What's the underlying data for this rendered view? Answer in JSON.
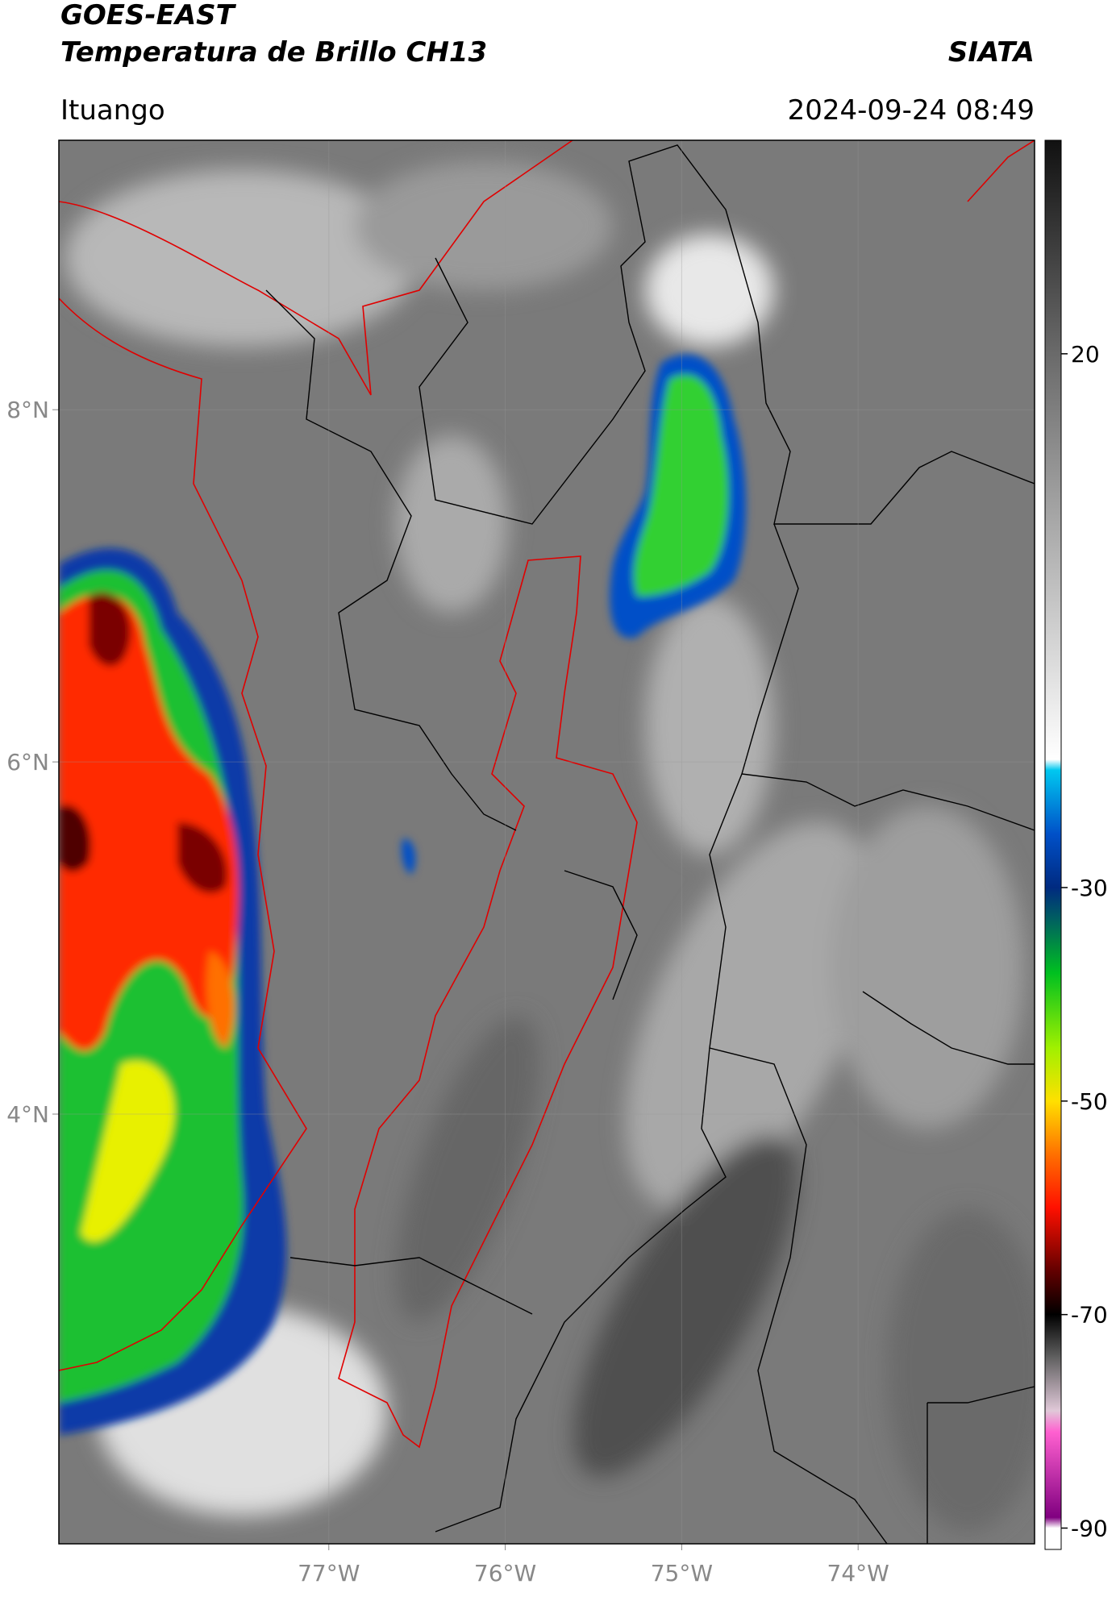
{
  "header": {
    "title": "GOES-EAST",
    "subtitle": "Temperatura de Brillo CH13",
    "source": "SIATA",
    "location": "Ituango",
    "datetime": "2024-09-24 08:49"
  },
  "map": {
    "xlim": [
      -78.53,
      -73.0
    ],
    "ylim": [
      1.56,
      9.53
    ],
    "xticks": [
      {
        "value": -77,
        "label": "77°W"
      },
      {
        "value": -76,
        "label": "76°W"
      },
      {
        "value": -75,
        "label": "75°W"
      },
      {
        "value": -74,
        "label": "74°W"
      }
    ],
    "yticks": [
      {
        "value": 8,
        "label": "8°N"
      },
      {
        "value": 6,
        "label": "6°N"
      },
      {
        "value": 4,
        "label": "4°N"
      }
    ]
  },
  "colorbar": {
    "clim": [
      -92,
      40
    ],
    "ticks": [
      20,
      -30,
      -50,
      -70,
      -90
    ],
    "colormap": [
      {
        "value": 40,
        "color": "#111111"
      },
      {
        "value": 20,
        "color": "#6a6a6a"
      },
      {
        "value": -18,
        "color": "#ffffff"
      },
      {
        "value": -19,
        "color": "#00c8f0"
      },
      {
        "value": -25,
        "color": "#0050c8"
      },
      {
        "value": -30,
        "color": "#002a80"
      },
      {
        "value": -33,
        "color": "#006060"
      },
      {
        "value": -38,
        "color": "#00c020"
      },
      {
        "value": -45,
        "color": "#a0f000"
      },
      {
        "value": -50,
        "color": "#ffe000"
      },
      {
        "value": -55,
        "color": "#ff7000"
      },
      {
        "value": -60,
        "color": "#ff1000"
      },
      {
        "value": -66,
        "color": "#600000"
      },
      {
        "value": -70,
        "color": "#000000"
      },
      {
        "value": -74,
        "color": "#606060"
      },
      {
        "value": -79,
        "color": "#e0c8d8"
      },
      {
        "value": -81,
        "color": "#ff60d0"
      },
      {
        "value": -89,
        "color": "#800080"
      },
      {
        "value": -90,
        "color": "#ffffff"
      }
    ]
  }
}
